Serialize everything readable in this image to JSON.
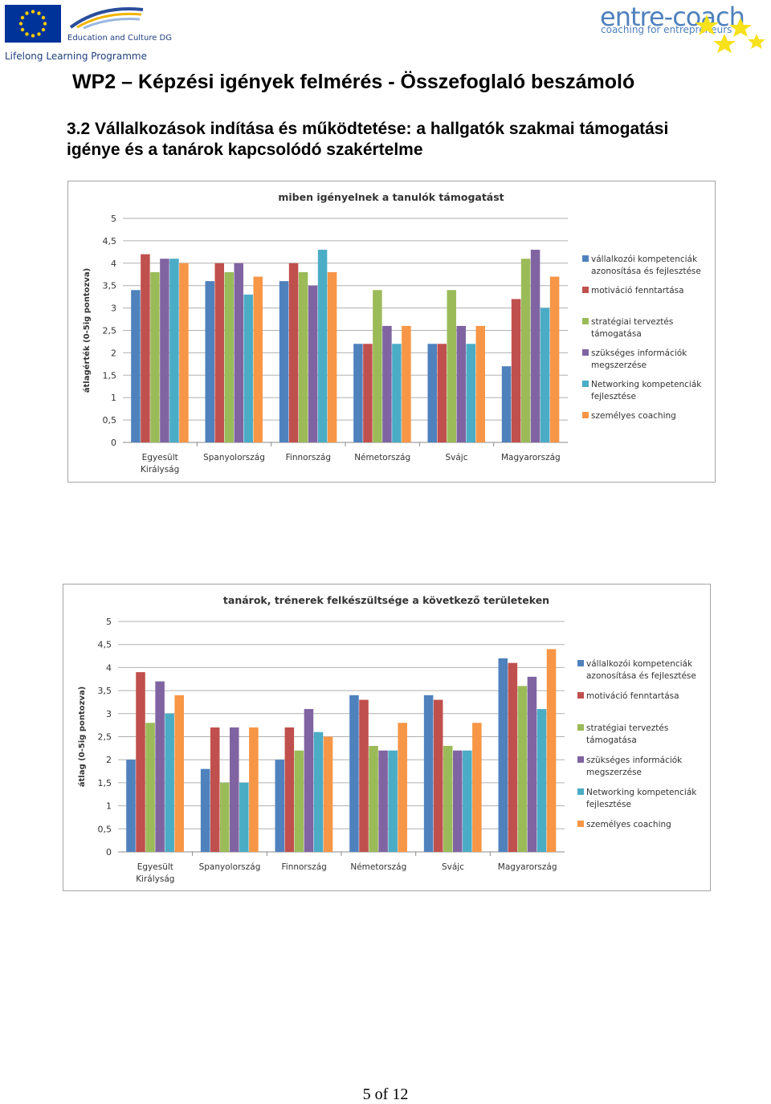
{
  "header": {
    "eu_org": "Education and Culture DG",
    "programme": "Lifelong Learning Programme",
    "brand_name": "entre-coach",
    "brand_tagline": "coaching for entrepreneurs"
  },
  "document": {
    "title": "WP2 – Képzési igények felmérés - Összefoglaló beszámoló",
    "section_title": "3.2 Vállalkozások indítása és működtetése: a hallgatók szakmai támogatási igénye és a tanárok kapcsolódó szakértelme"
  },
  "footer": {
    "page": "5 of 12"
  },
  "chart_data": [
    {
      "type": "bar",
      "title": "miben igényelnek a tanulók támogatást",
      "ylabel": "átlagérték (0-5ig pontozva)",
      "ylim": [
        0,
        5
      ],
      "yticks": [
        "0",
        "0,5",
        "1",
        "1,5",
        "2",
        "2,5",
        "3",
        "3,5",
        "4",
        "4,5",
        "5"
      ],
      "categories": [
        [
          "Egyesült",
          "Királyság"
        ],
        [
          "Spanyolország"
        ],
        [
          "Finnország"
        ],
        [
          "Németország"
        ],
        [
          "Svájc"
        ],
        [
          "Magyarország"
        ]
      ],
      "legend_position": "right",
      "series": [
        {
          "name": [
            "vállalkozói kompetenciák",
            "azonosítása és fejlesztése"
          ],
          "color": "#4f81bd",
          "values": [
            3.4,
            3.6,
            3.6,
            2.2,
            2.2,
            1.7
          ]
        },
        {
          "name": [
            "motiváció fenntartása"
          ],
          "color": "#c0504d",
          "values": [
            4.2,
            4.0,
            4.0,
            2.2,
            2.2,
            3.2
          ]
        },
        {
          "name": [
            "stratégiai terveztés",
            "támogatása"
          ],
          "color": "#9bbb59",
          "values": [
            3.8,
            3.8,
            3.8,
            3.4,
            3.4,
            4.1
          ]
        },
        {
          "name": [
            "szükséges információk",
            "megszerzése"
          ],
          "color": "#8064a2",
          "values": [
            4.1,
            4.0,
            3.5,
            2.6,
            2.6,
            4.3
          ]
        },
        {
          "name": [
            "Networking kompetenciák",
            "fejlesztése"
          ],
          "color": "#4bacc6",
          "values": [
            4.1,
            3.3,
            4.3,
            2.2,
            2.2,
            3.0
          ]
        },
        {
          "name": [
            "személyes coaching"
          ],
          "color": "#f79646",
          "values": [
            4.0,
            3.7,
            3.8,
            2.6,
            2.6,
            3.7
          ]
        }
      ]
    },
    {
      "type": "bar",
      "title": "tanárok, trénerek felkészültsége a következő területeken",
      "ylabel": "átlag (0-5ig pontozva)",
      "ylim": [
        0,
        5
      ],
      "yticks": [
        "0",
        "0,5",
        "1",
        "1,5",
        "2",
        "2,5",
        "3",
        "3,5",
        "4",
        "4,5",
        "5"
      ],
      "categories": [
        [
          "Egyesült",
          "Királyság"
        ],
        [
          "Spanyolország"
        ],
        [
          "Finnország"
        ],
        [
          "Németország"
        ],
        [
          "Svájc"
        ],
        [
          "Magyarország"
        ]
      ],
      "legend_position": "right",
      "series": [
        {
          "name": [
            "vállalkozói kompetenciák",
            "azonosítása és fejlesztése"
          ],
          "color": "#4f81bd",
          "values": [
            2.0,
            1.8,
            2.0,
            3.4,
            3.4,
            4.2
          ]
        },
        {
          "name": [
            "motiváció fenntartása"
          ],
          "color": "#c0504d",
          "values": [
            3.9,
            2.7,
            2.7,
            3.3,
            3.3,
            4.1
          ]
        },
        {
          "name": [
            "stratégiai terveztés",
            "támogatása"
          ],
          "color": "#9bbb59",
          "values": [
            2.8,
            1.5,
            2.2,
            2.3,
            2.3,
            3.6
          ]
        },
        {
          "name": [
            "szükséges információk",
            "megszerzése"
          ],
          "color": "#8064a2",
          "values": [
            3.7,
            2.7,
            3.1,
            2.2,
            2.2,
            3.8
          ]
        },
        {
          "name": [
            "Networking kompetenciák",
            "fejlesztése"
          ],
          "color": "#4bacc6",
          "values": [
            3.0,
            1.5,
            2.6,
            2.2,
            2.2,
            3.1
          ]
        },
        {
          "name": [
            "személyes coaching"
          ],
          "color": "#f79646",
          "values": [
            3.4,
            2.7,
            2.5,
            2.8,
            2.8,
            4.4
          ]
        }
      ]
    }
  ]
}
